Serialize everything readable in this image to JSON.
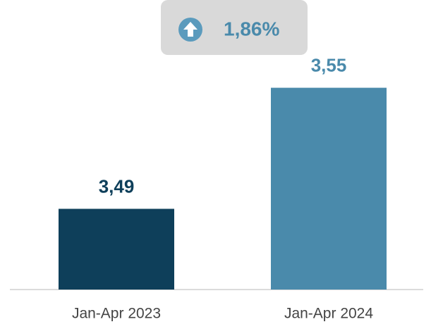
{
  "chart_data": {
    "type": "bar",
    "annotation": "1,86%",
    "categories": [
      "Jan-Apr 2023",
      "Jan-Apr 2024"
    ],
    "values": [
      3.49,
      3.55
    ],
    "value_labels": [
      "3,49",
      "3,55"
    ],
    "colors": [
      "#0e3f5a",
      "#4a8aab"
    ],
    "ylim": [
      3.45,
      3.59
    ]
  }
}
